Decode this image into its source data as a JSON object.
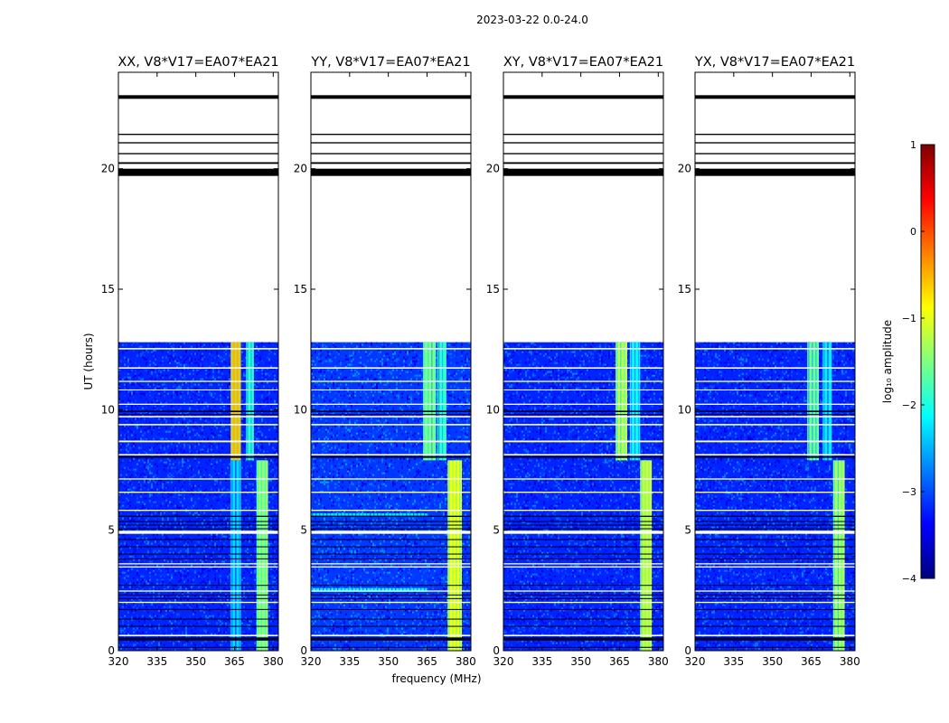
{
  "figure_title": "2023-03-22 0.0-24.0",
  "xlabel": "frequency (MHz)",
  "ylabel": "UT (hours)",
  "colorbar": {
    "label": "log₁₀ amplitude",
    "ticks": [
      1,
      0,
      -1,
      -2,
      -3,
      -4
    ],
    "tick_labels": [
      "1",
      "0",
      "−1",
      "−2",
      "−3",
      "−4"
    ],
    "range": [
      -4,
      1
    ],
    "colormap": "jet",
    "colors": [
      "#00007f",
      "#0000ff",
      "#007fff",
      "#00ffff",
      "#7fff7f",
      "#ffff00",
      "#ff7f00",
      "#ff0000",
      "#7f0000"
    ]
  },
  "chart_data": {
    "type": "heatmap",
    "x_range": [
      320,
      382
    ],
    "y_range": [
      0,
      24
    ],
    "x_ticks": [
      320,
      335,
      350,
      365,
      380
    ],
    "y_ticks": [
      0,
      5,
      10,
      15,
      20
    ],
    "data_extent_hours": [
      0,
      12.8
    ],
    "flagged_hours": [
      [
        22.9,
        23.05
      ],
      [
        21.4,
        21.45
      ],
      [
        21.05,
        21.1
      ],
      [
        20.6,
        20.65
      ],
      [
        20.2,
        20.27
      ],
      [
        19.7,
        20.0
      ]
    ],
    "data_gap_lines_hours": [
      [
        12.5,
        12.56
      ],
      [
        11.7,
        11.76
      ],
      [
        11.15,
        11.2
      ],
      [
        10.8,
        10.84
      ],
      [
        10.2,
        10.25
      ],
      [
        9.68,
        9.74
      ],
      [
        9.35,
        9.41
      ],
      [
        8.65,
        8.72
      ],
      [
        8.1,
        8.16
      ],
      [
        7.1,
        7.15
      ],
      [
        6.55,
        6.6
      ],
      [
        5.8,
        5.85
      ],
      [
        4.85,
        4.98
      ],
      [
        3.58,
        3.63
      ],
      [
        3.45,
        3.5
      ],
      [
        2.45,
        2.5
      ],
      [
        1.98,
        2.03
      ],
      [
        0.6,
        0.66
      ]
    ],
    "dark_line_hours": [
      [
        9.9,
        9.96
      ],
      [
        9.78,
        9.82
      ],
      [
        8.0,
        8.08
      ],
      [
        5.55,
        5.6
      ],
      [
        5.35,
        5.38
      ],
      [
        5.2,
        5.23
      ],
      [
        5.05,
        5.08
      ],
      [
        4.6,
        4.63
      ],
      [
        4.3,
        4.33
      ],
      [
        4.0,
        4.03
      ],
      [
        3.8,
        3.83
      ],
      [
        2.7,
        2.73
      ],
      [
        2.3,
        2.33
      ],
      [
        2.15,
        2.18
      ],
      [
        1.7,
        1.73
      ],
      [
        1.3,
        1.33
      ],
      [
        1.0,
        1.03
      ],
      [
        0.42,
        0.55
      ],
      [
        0.12,
        0.16
      ]
    ],
    "panels": [
      {
        "title": "XX, V8*V17=EA07*EA21",
        "background_log_amp": -3.2,
        "bands": [
          {
            "f": [
              363.5,
              367.5
            ],
            "t": [
              7.9,
              12.8
            ],
            "log_amp": -0.5
          },
          {
            "f": [
              363.5,
              367.5
            ],
            "t": [
              0,
              7.9
            ],
            "log_amp": -2.3
          },
          {
            "f": [
              369.5,
              372.5
            ],
            "t": [
              7.9,
              12.8
            ],
            "log_amp": -1.9
          },
          {
            "f": [
              373.5,
              378.0
            ],
            "t": [
              0,
              7.9
            ],
            "log_amp": -1.4
          }
        ]
      },
      {
        "title": "YY, V8*V17=EA07*EA21",
        "background_log_amp": -3.1,
        "bands": [
          {
            "f": [
              363.5,
              368.5
            ],
            "t": [
              7.9,
              12.8
            ],
            "log_amp": -1.5
          },
          {
            "f": [
              369.0,
              372.5
            ],
            "t": [
              7.9,
              12.8
            ],
            "log_amp": -1.9
          },
          {
            "f": [
              373.0,
              378.5
            ],
            "t": [
              0,
              7.9
            ],
            "log_amp": -0.9
          },
          {
            "f": [
              320,
              365
            ],
            "t": [
              2.45,
              2.6
            ],
            "log_amp": -2.1
          },
          {
            "f": [
              320,
              365
            ],
            "t": [
              5.6,
              5.7
            ],
            "log_amp": -2.2
          }
        ]
      },
      {
        "title": "XY, V8*V17=EA07*EA21",
        "background_log_amp": -3.2,
        "bands": [
          {
            "f": [
              363.5,
              368.0
            ],
            "t": [
              7.9,
              12.8
            ],
            "log_amp": -1.2
          },
          {
            "f": [
              369.0,
              373.0
            ],
            "t": [
              7.9,
              12.8
            ],
            "log_amp": -2.1
          },
          {
            "f": [
              373.0,
              377.5
            ],
            "t": [
              0,
              7.9
            ],
            "log_amp": -1.1
          }
        ]
      },
      {
        "title": "YX, V8*V17=EA07*EA21",
        "background_log_amp": -3.2,
        "bands": [
          {
            "f": [
              363.5,
              368.0
            ],
            "t": [
              7.9,
              12.8
            ],
            "log_amp": -1.6
          },
          {
            "f": [
              369.5,
              373.0
            ],
            "t": [
              7.9,
              12.8
            ],
            "log_amp": -2.2
          },
          {
            "f": [
              373.5,
              378.0
            ],
            "t": [
              0,
              7.9
            ],
            "log_amp": -1.3
          }
        ]
      }
    ]
  }
}
